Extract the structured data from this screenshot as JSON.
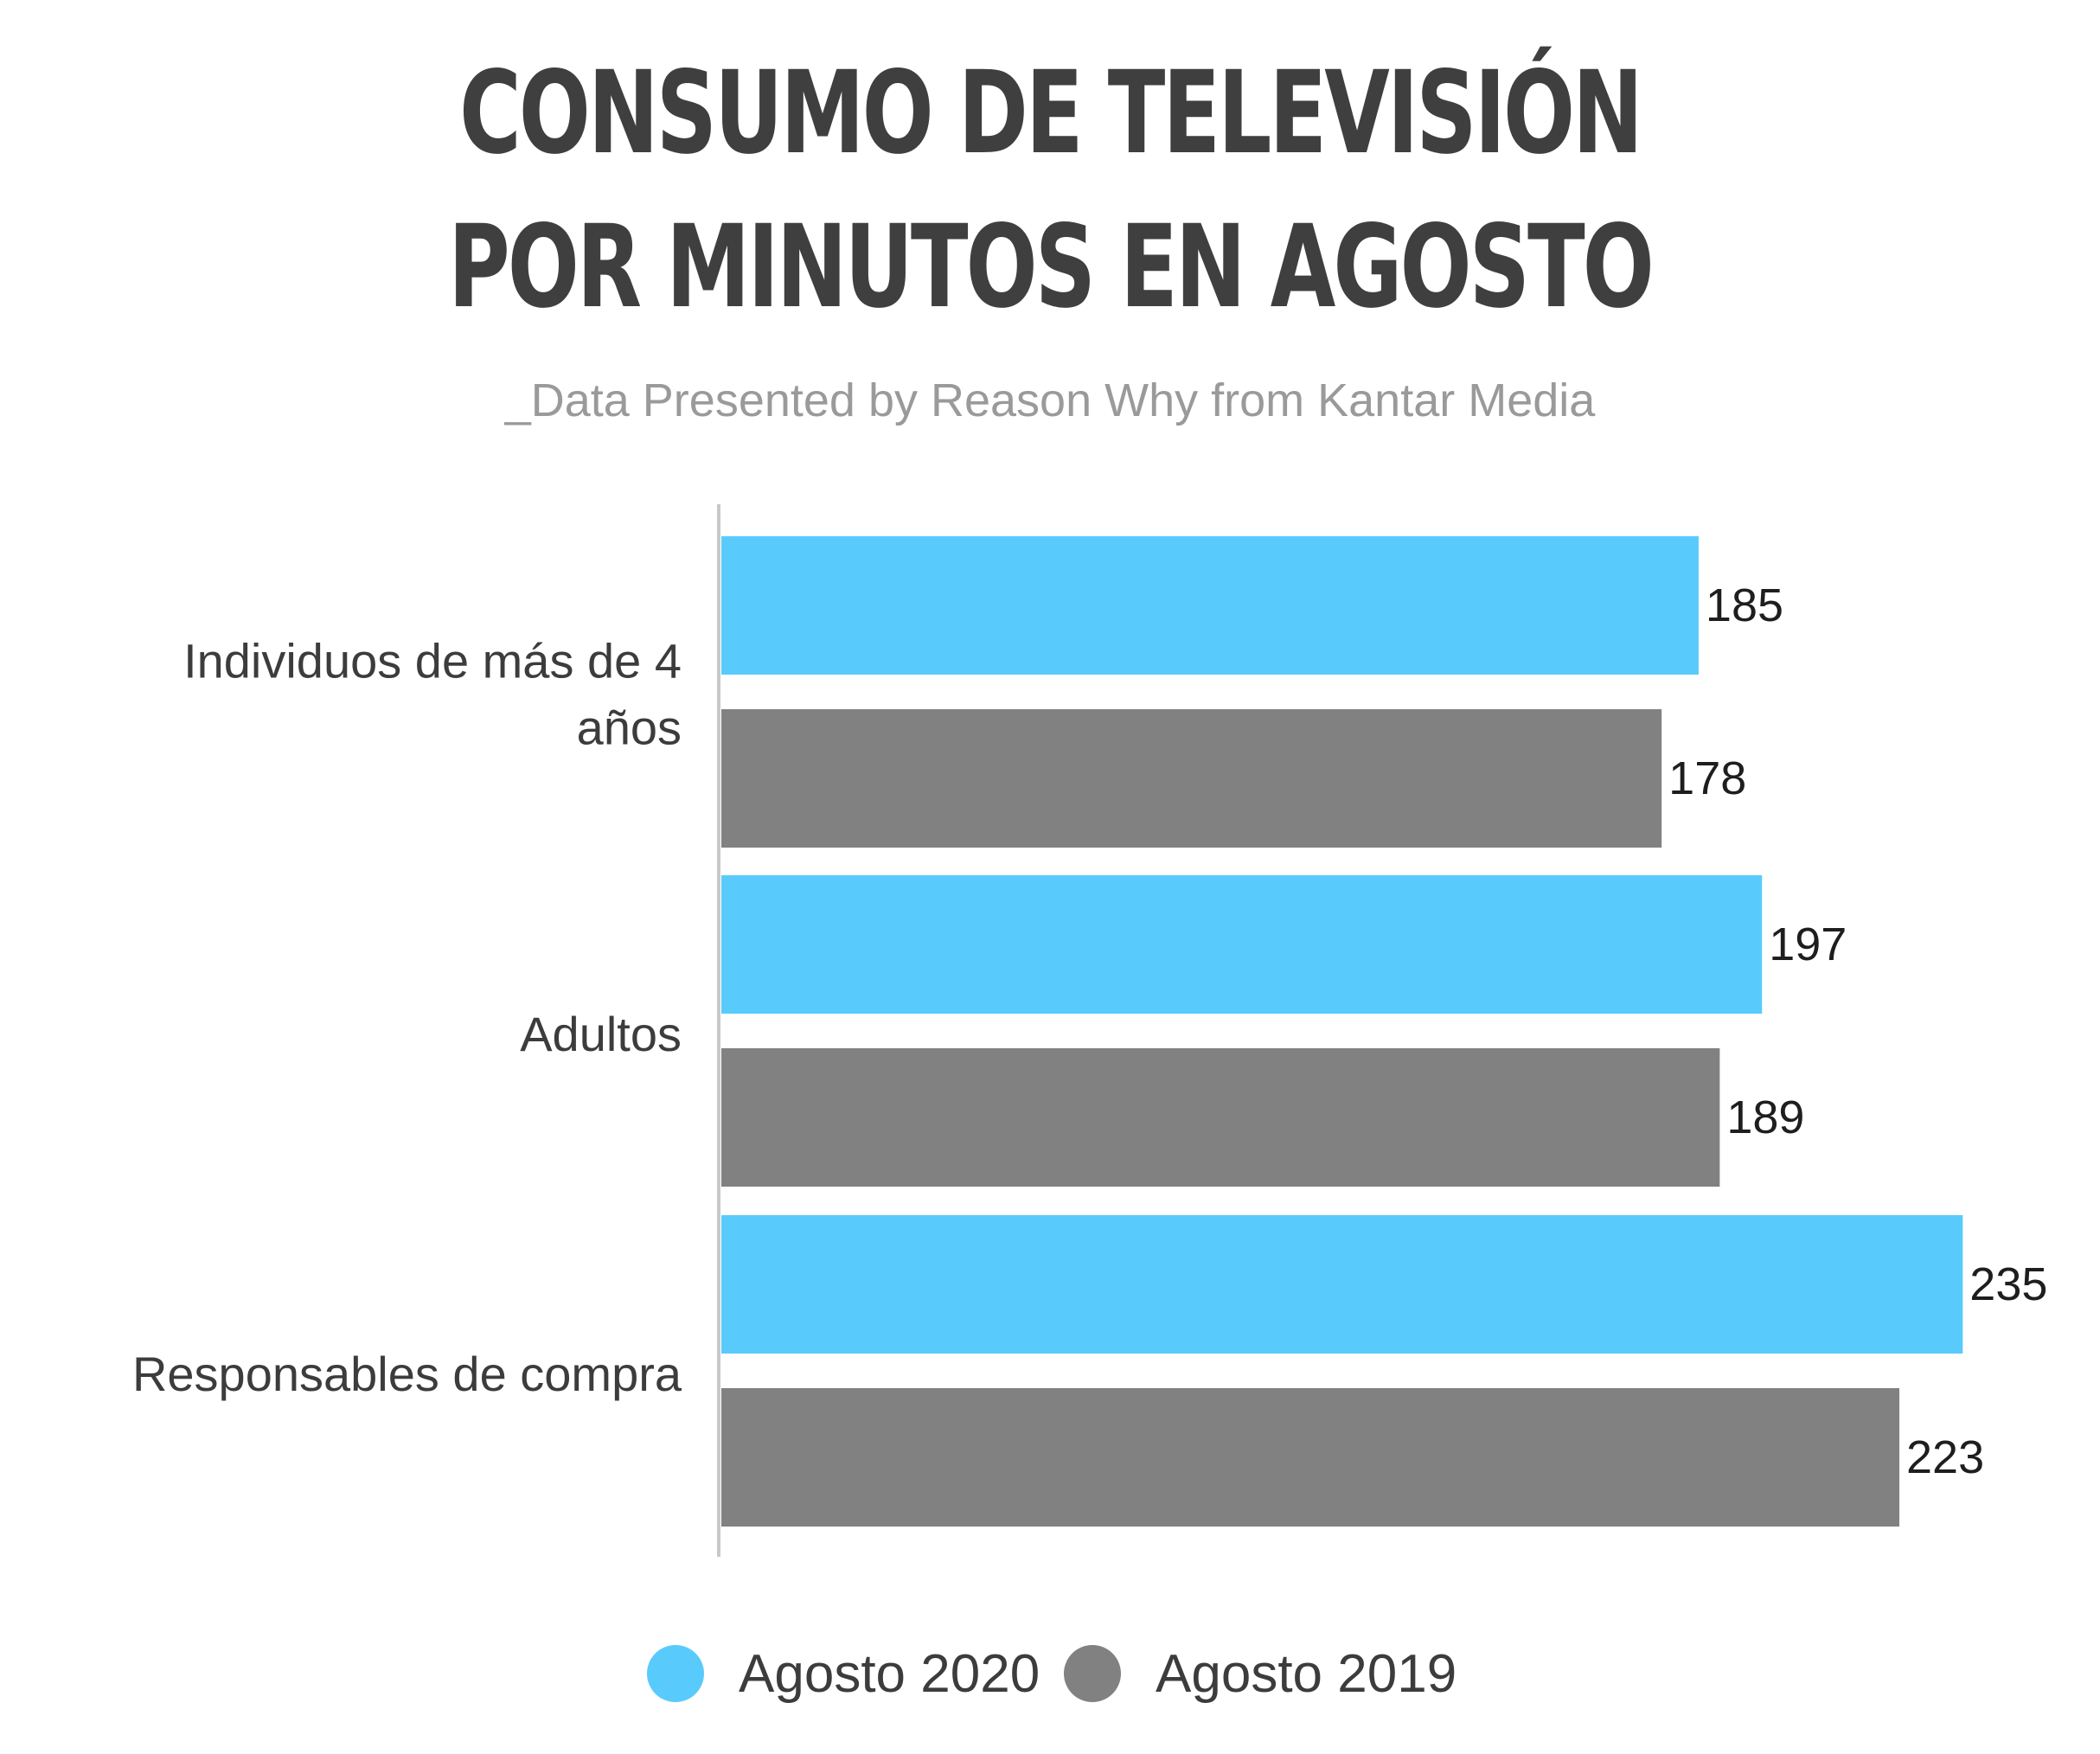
{
  "title_lines": [
    "CONSUMO DE TELEVISIÓN",
    "POR MINUTOS EN AGOSTO"
  ],
  "subtitle": "_Data Presented by Reason Why from Kantar Media",
  "colors": {
    "agosto_2020": "#58cbfc",
    "agosto_2019": "#818181",
    "axis": "#c8c8c8",
    "title": "#3f3f3f",
    "subtitle": "#9a9a9a",
    "label": "#3c3c3c"
  },
  "chart_data": {
    "type": "bar",
    "orientation": "horizontal",
    "title": "CONSUMO DE TELEVISIÓN POR MINUTOS EN AGOSTO",
    "subtitle": "_Data Presented by Reason Why from Kantar Media",
    "categories": [
      [
        "Individuos de más de 4",
        "años"
      ],
      [
        "Adultos"
      ],
      [
        "Responsables de compra"
      ]
    ],
    "series": [
      {
        "name": "Agosto 2020",
        "color": "#58cbfc",
        "values": [
          185,
          197,
          235
        ]
      },
      {
        "name": "Agosto 2019",
        "color": "#818181",
        "values": [
          178,
          189,
          223
        ]
      }
    ],
    "xlim": [
      0,
      235
    ],
    "grid": false,
    "legend_position": "bottom"
  }
}
